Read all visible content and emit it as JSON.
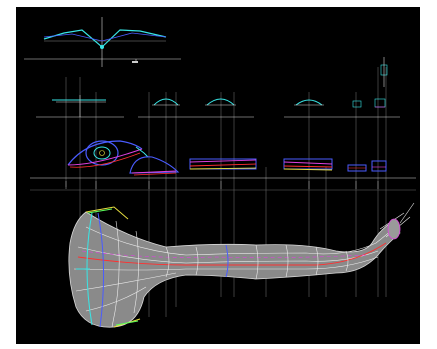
{
  "viewport": {
    "kind": "cad-wireframe-blueprint",
    "background": "#000000",
    "line_color": "#ffffff",
    "accent_colors": {
      "cyan": "#38e6e6",
      "blue": "#4a5cff",
      "magenta": "#e040e0",
      "red": "#ff3030",
      "yellow": "#e8e040",
      "green": "#5cff5c",
      "white": "#f0f0f0",
      "mesh_gray": "#8a8a8a"
    }
  },
  "views": [
    {
      "name": "top-profile-view",
      "description_icon": "profile-curve-icon"
    },
    {
      "name": "cross-section-row",
      "description_icon": "section-icon"
    },
    {
      "name": "side-elevation-row",
      "description_icon": "elevation-icon"
    },
    {
      "name": "perspective-mesh",
      "description_icon": "mesh-icon"
    }
  ]
}
